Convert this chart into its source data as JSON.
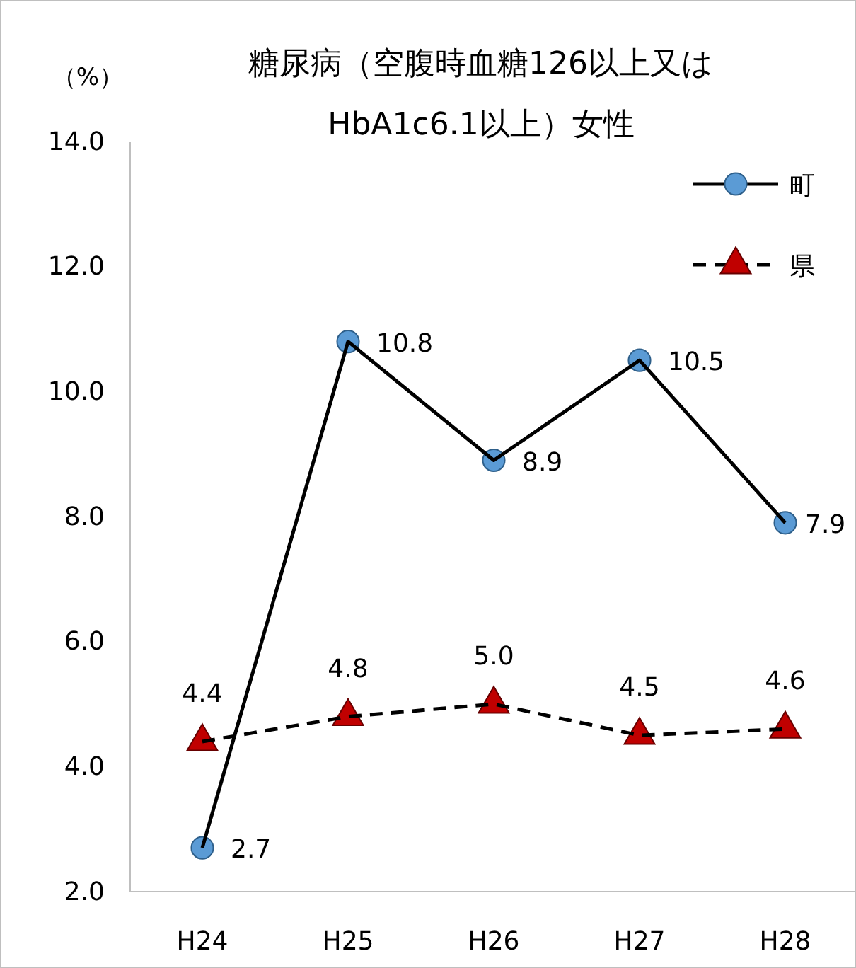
{
  "chart_data": {
    "type": "line",
    "title": "糖尿病（空腹時血糖126以上又は\nHbA1c6.1以上）女性",
    "ylabel": "（%）",
    "categories": [
      "H24",
      "H25",
      "H26",
      "H27",
      "H28"
    ],
    "series": [
      {
        "name": "町",
        "color": "#5b9bd5",
        "marker": "circle",
        "line_style": "solid",
        "values": [
          2.7,
          10.8,
          8.9,
          10.5,
          7.9
        ],
        "value_labels": [
          "2.7",
          "10.8",
          "8.9",
          "10.5",
          "7.9"
        ]
      },
      {
        "name": "県",
        "color": "#c00000",
        "marker": "triangle",
        "line_style": "dashed",
        "values": [
          4.4,
          4.8,
          5.0,
          4.5,
          4.6
        ],
        "value_labels": [
          "4.4",
          "4.8",
          "5.0",
          "4.5",
          "4.6"
        ]
      }
    ],
    "ylim": [
      2,
      14
    ],
    "yticks": [
      {
        "value": 2,
        "label": "2.0"
      },
      {
        "value": 4,
        "label": "4.0"
      },
      {
        "value": 6,
        "label": "6.0"
      },
      {
        "value": 8,
        "label": "8.0"
      },
      {
        "value": 10,
        "label": "10.0"
      },
      {
        "value": 12,
        "label": "12.0"
      },
      {
        "value": 14,
        "label": "14.0"
      }
    ],
    "grid": false,
    "legend": "top right"
  }
}
